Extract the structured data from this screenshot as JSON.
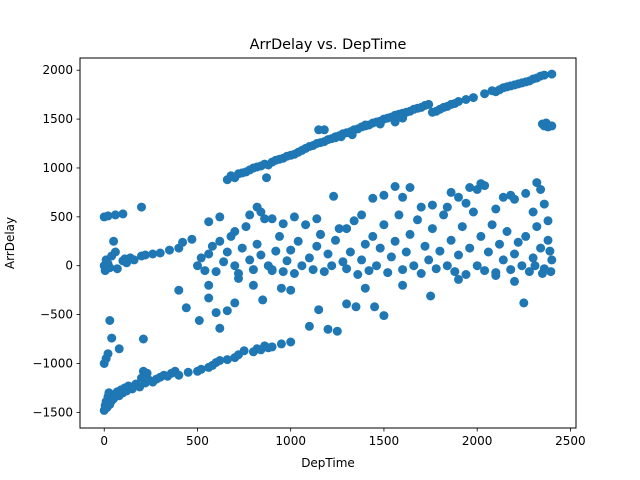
{
  "chart_data": {
    "type": "scatter",
    "title": "ArrDelay vs. DepTime",
    "xlabel": "DepTime",
    "ylabel": "ArrDelay",
    "xlim": [
      -130,
      2530
    ],
    "ylim": [
      -1660,
      2125
    ],
    "xticks": [
      0,
      500,
      1000,
      1500,
      2000,
      2500
    ],
    "yticks": [
      -1500,
      -1000,
      -500,
      0,
      500,
      1000,
      1500,
      2000
    ],
    "grid": false,
    "marker_color": "#1f77b4",
    "points": [
      [
        0,
        -1480
      ],
      [
        5,
        -1430
      ],
      [
        10,
        -1390
      ],
      [
        15,
        -1450
      ],
      [
        20,
        -1340
      ],
      [
        25,
        -1300
      ],
      [
        30,
        -1420
      ],
      [
        40,
        -1380
      ],
      [
        50,
        -1360
      ],
      [
        60,
        -1310
      ],
      [
        70,
        -1290
      ],
      [
        80,
        -1330
      ],
      [
        90,
        -1270
      ],
      [
        100,
        -1300
      ],
      [
        110,
        -1250
      ],
      [
        120,
        -1280
      ],
      [
        130,
        -1230
      ],
      [
        150,
        -1260
      ],
      [
        170,
        -1210
      ],
      [
        190,
        -1240
      ],
      [
        200,
        -1150
      ],
      [
        210,
        -1080
      ],
      [
        220,
        -1200
      ],
      [
        230,
        -1100
      ],
      [
        240,
        -1170
      ],
      [
        260,
        -1190
      ],
      [
        280,
        -1160
      ],
      [
        300,
        -1140
      ],
      [
        320,
        -1120
      ],
      [
        340,
        -1130
      ],
      [
        360,
        -1100
      ],
      [
        380,
        -1080
      ],
      [
        400,
        -1120
      ],
      [
        450,
        -1090
      ],
      [
        500,
        -1080
      ],
      [
        520,
        -1060
      ],
      [
        560,
        -1040
      ],
      [
        580,
        -1020
      ],
      [
        600,
        -990
      ],
      [
        620,
        -970
      ],
      [
        660,
        -960
      ],
      [
        700,
        -940
      ],
      [
        720,
        -910
      ],
      [
        750,
        -870
      ],
      [
        800,
        -880
      ],
      [
        820,
        -850
      ],
      [
        840,
        -860
      ],
      [
        860,
        -820
      ],
      [
        880,
        -840
      ],
      [
        900,
        -830
      ],
      [
        950,
        -800
      ],
      [
        1000,
        -780
      ],
      [
        0,
        -1000
      ],
      [
        10,
        -950
      ],
      [
        20,
        -900
      ],
      [
        30,
        -560
      ],
      [
        40,
        -740
      ],
      [
        80,
        -850
      ],
      [
        210,
        -750
      ],
      [
        0,
        0
      ],
      [
        5,
        -50
      ],
      [
        10,
        60
      ],
      [
        20,
        20
      ],
      [
        30,
        -20
      ],
      [
        40,
        100
      ],
      [
        50,
        250
      ],
      [
        60,
        140
      ],
      [
        70,
        -30
      ],
      [
        100,
        50
      ],
      [
        110,
        70
      ],
      [
        120,
        30
      ],
      [
        140,
        80
      ],
      [
        160,
        60
      ],
      [
        200,
        100
      ],
      [
        220,
        110
      ],
      [
        260,
        120
      ],
      [
        300,
        130
      ],
      [
        350,
        160
      ],
      [
        400,
        180
      ],
      [
        420,
        240
      ],
      [
        470,
        270
      ],
      [
        0,
        500
      ],
      [
        20,
        510
      ],
      [
        60,
        520
      ],
      [
        100,
        530
      ],
      [
        200,
        600
      ],
      [
        400,
        -250
      ],
      [
        440,
        -430
      ],
      [
        510,
        -560
      ],
      [
        560,
        -200
      ],
      [
        560,
        -330
      ],
      [
        600,
        -480
      ],
      [
        620,
        -640
      ],
      [
        660,
        -460
      ],
      [
        700,
        -380
      ],
      [
        720,
        -130
      ],
      [
        800,
        -200
      ],
      [
        850,
        -350
      ],
      [
        900,
        -40
      ],
      [
        950,
        -230
      ],
      [
        1000,
        -250
      ],
      [
        1100,
        -620
      ],
      [
        1150,
        -450
      ],
      [
        1200,
        -650
      ],
      [
        1250,
        -670
      ],
      [
        1300,
        -390
      ],
      [
        1350,
        -420
      ],
      [
        1450,
        -420
      ],
      [
        1500,
        -510
      ],
      [
        1750,
        -310
      ],
      [
        2250,
        -380
      ],
      [
        1400,
        -230
      ],
      [
        1600,
        -200
      ],
      [
        1900,
        -140
      ],
      [
        2100,
        -100
      ],
      [
        500,
        0
      ],
      [
        520,
        80
      ],
      [
        540,
        -50
      ],
      [
        560,
        120
      ],
      [
        580,
        200
      ],
      [
        600,
        -60
      ],
      [
        620,
        250
      ],
      [
        640,
        40
      ],
      [
        660,
        140
      ],
      [
        680,
        300
      ],
      [
        700,
        0
      ],
      [
        720,
        -80
      ],
      [
        740,
        180
      ],
      [
        760,
        400
      ],
      [
        780,
        60
      ],
      [
        800,
        -40
      ],
      [
        820,
        220
      ],
      [
        840,
        110
      ],
      [
        860,
        480
      ],
      [
        880,
        0
      ],
      [
        900,
        -50
      ],
      [
        920,
        150
      ],
      [
        940,
        300
      ],
      [
        960,
        -60
      ],
      [
        980,
        50
      ],
      [
        1000,
        160
      ],
      [
        1020,
        -80
      ],
      [
        1040,
        250
      ],
      [
        1060,
        0
      ],
      [
        1080,
        420
      ],
      [
        1100,
        80
      ],
      [
        1120,
        -40
      ],
      [
        1140,
        200
      ],
      [
        1160,
        320
      ],
      [
        1180,
        -60
      ],
      [
        1200,
        120
      ],
      [
        1220,
        0
      ],
      [
        1240,
        260
      ],
      [
        1260,
        380
      ],
      [
        1280,
        40
      ],
      [
        1300,
        -30
      ],
      [
        1320,
        140
      ],
      [
        1340,
        460
      ],
      [
        1360,
        -90
      ],
      [
        1380,
        60
      ],
      [
        1400,
        220
      ],
      [
        1420,
        -50
      ],
      [
        1440,
        300
      ],
      [
        1460,
        0
      ],
      [
        1480,
        180
      ],
      [
        1500,
        420
      ],
      [
        1520,
        -70
      ],
      [
        1540,
        90
      ],
      [
        1560,
        250
      ],
      [
        1580,
        520
      ],
      [
        1600,
        -40
      ],
      [
        1620,
        140
      ],
      [
        1640,
        320
      ],
      [
        1660,
        0
      ],
      [
        1680,
        470
      ],
      [
        1700,
        -80
      ],
      [
        1720,
        200
      ],
      [
        1740,
        60
      ],
      [
        1760,
        380
      ],
      [
        1780,
        -30
      ],
      [
        1800,
        150
      ],
      [
        1820,
        520
      ],
      [
        1840,
        0
      ],
      [
        1860,
        260
      ],
      [
        1880,
        -60
      ],
      [
        1900,
        110
      ],
      [
        1920,
        400
      ],
      [
        1940,
        -90
      ],
      [
        1960,
        180
      ],
      [
        1980,
        550
      ],
      [
        2000,
        0
      ],
      [
        2020,
        300
      ],
      [
        2040,
        -50
      ],
      [
        2060,
        140
      ],
      [
        2080,
        420
      ],
      [
        2100,
        -70
      ],
      [
        2120,
        220
      ],
      [
        2140,
        60
      ],
      [
        2160,
        350
      ],
      [
        2180,
        -40
      ],
      [
        2200,
        120
      ],
      [
        2220,
        240
      ],
      [
        2240,
        0
      ],
      [
        2260,
        300
      ],
      [
        2280,
        -60
      ],
      [
        2300,
        80
      ],
      [
        2320,
        400
      ],
      [
        2340,
        180
      ],
      [
        2360,
        -30
      ],
      [
        2380,
        260
      ],
      [
        2400,
        60
      ],
      [
        2395,
        -60
      ],
      [
        2390,
        150
      ],
      [
        2350,
        -80
      ],
      [
        2310,
        0
      ],
      [
        560,
        450
      ],
      [
        620,
        500
      ],
      [
        700,
        350
      ],
      [
        780,
        520
      ],
      [
        820,
        600
      ],
      [
        840,
        550
      ],
      [
        900,
        480
      ],
      [
        960,
        430
      ],
      [
        1020,
        500
      ],
      [
        1140,
        480
      ],
      [
        1160,
        320
      ],
      [
        1230,
        710
      ],
      [
        1300,
        380
      ],
      [
        1380,
        520
      ],
      [
        1440,
        690
      ],
      [
        1500,
        720
      ],
      [
        1560,
        810
      ],
      [
        1600,
        700
      ],
      [
        1640,
        800
      ],
      [
        1700,
        600
      ],
      [
        1760,
        620
      ],
      [
        1840,
        600
      ],
      [
        1860,
        750
      ],
      [
        1900,
        700
      ],
      [
        1940,
        640
      ],
      [
        1960,
        800
      ],
      [
        2000,
        780
      ],
      [
        2020,
        840
      ],
      [
        2040,
        820
      ],
      [
        2100,
        580
      ],
      [
        2140,
        700
      ],
      [
        2180,
        720
      ],
      [
        2200,
        680
      ],
      [
        2260,
        740
      ],
      [
        2300,
        550
      ],
      [
        2320,
        850
      ],
      [
        2340,
        780
      ],
      [
        2360,
        630
      ],
      [
        2380,
        460
      ],
      [
        2200,
        -160
      ],
      [
        660,
        880
      ],
      [
        680,
        920
      ],
      [
        700,
        900
      ],
      [
        720,
        940
      ],
      [
        740,
        950
      ],
      [
        760,
        960
      ],
      [
        780,
        980
      ],
      [
        800,
        1000
      ],
      [
        820,
        1010
      ],
      [
        840,
        1020
      ],
      [
        860,
        1040
      ],
      [
        880,
        1030
      ],
      [
        900,
        1060
      ],
      [
        920,
        1080
      ],
      [
        940,
        1090
      ],
      [
        960,
        1100
      ],
      [
        980,
        1120
      ],
      [
        1000,
        1130
      ],
      [
        1020,
        1140
      ],
      [
        1040,
        1160
      ],
      [
        1060,
        1180
      ],
      [
        1080,
        1200
      ],
      [
        1100,
        1220
      ],
      [
        1120,
        1230
      ],
      [
        1140,
        1250
      ],
      [
        1160,
        1260
      ],
      [
        1180,
        1270
      ],
      [
        1200,
        1290
      ],
      [
        1220,
        1300
      ],
      [
        1240,
        1320
      ],
      [
        1260,
        1330
      ],
      [
        1280,
        1350
      ],
      [
        1300,
        1360
      ],
      [
        1320,
        1370
      ],
      [
        1340,
        1390
      ],
      [
        1360,
        1400
      ],
      [
        1380,
        1420
      ],
      [
        1400,
        1430
      ],
      [
        1420,
        1440
      ],
      [
        1440,
        1460
      ],
      [
        1460,
        1470
      ],
      [
        1480,
        1480
      ],
      [
        1500,
        1500
      ],
      [
        1520,
        1510
      ],
      [
        1540,
        1520
      ],
      [
        1560,
        1540
      ],
      [
        1580,
        1550
      ],
      [
        1600,
        1560
      ],
      [
        1620,
        1570
      ],
      [
        1640,
        1580
      ],
      [
        1660,
        1600
      ],
      [
        1680,
        1610
      ],
      [
        1700,
        1620
      ],
      [
        1720,
        1640
      ],
      [
        1740,
        1650
      ],
      [
        1760,
        1570
      ],
      [
        1780,
        1580
      ],
      [
        1800,
        1600
      ],
      [
        1820,
        1620
      ],
      [
        1840,
        1630
      ],
      [
        1860,
        1650
      ],
      [
        1880,
        1660
      ],
      [
        1900,
        1680
      ],
      [
        1940,
        1700
      ],
      [
        1980,
        1720
      ],
      [
        2040,
        1760
      ],
      [
        2080,
        1790
      ],
      [
        2100,
        1780
      ],
      [
        2120,
        1800
      ],
      [
        2140,
        1820
      ],
      [
        2160,
        1830
      ],
      [
        2180,
        1840
      ],
      [
        2200,
        1850
      ],
      [
        2220,
        1860
      ],
      [
        2240,
        1870
      ],
      [
        2260,
        1880
      ],
      [
        2280,
        1890
      ],
      [
        2300,
        1910
      ],
      [
        2320,
        1920
      ],
      [
        2340,
        1940
      ],
      [
        2360,
        1950
      ],
      [
        2400,
        1960
      ],
      [
        2350,
        1450
      ],
      [
        2360,
        1430
      ],
      [
        2370,
        1460
      ],
      [
        2380,
        1420
      ],
      [
        2400,
        1430
      ],
      [
        870,
        900
      ],
      [
        1150,
        1390
      ],
      [
        1180,
        1390
      ],
      [
        1240,
        1310
      ],
      [
        1270,
        1320
      ],
      [
        1330,
        1340
      ],
      [
        1400,
        1440
      ],
      [
        1480,
        1450
      ],
      [
        1560,
        1470
      ],
      [
        1600,
        1510
      ]
    ]
  }
}
